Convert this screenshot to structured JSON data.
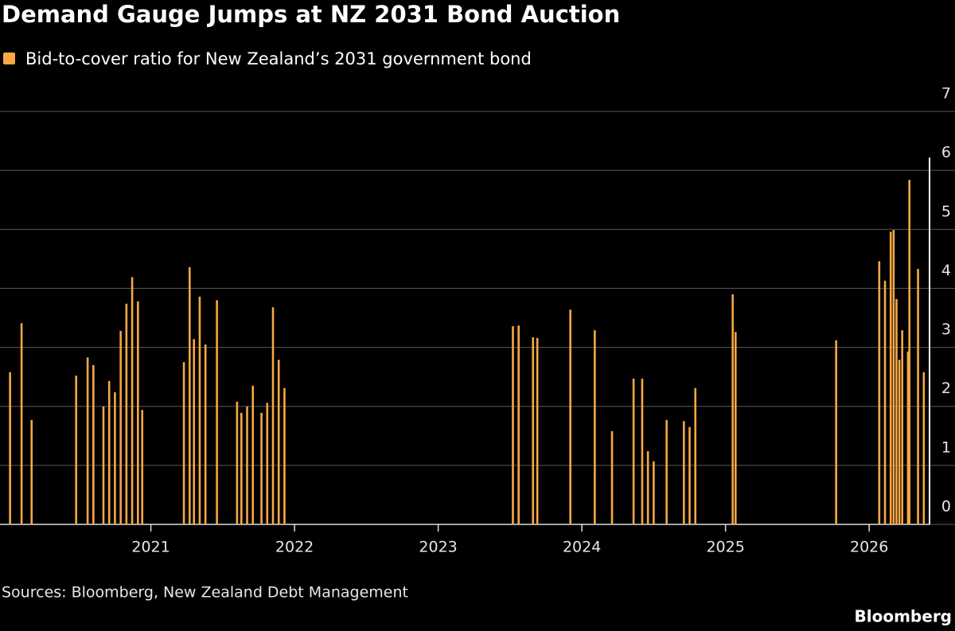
{
  "chart_data": {
    "type": "bar",
    "title": "Demand Gauge Jumps at NZ 2031 Bond Auction",
    "source": "Sources: Bloomberg, New Zealand Debt Management",
    "brand": "Bloomberg",
    "series": [
      {
        "name": "Bid-to-cover ratio for New Zealand’s 2031 government bond",
        "color": "#f7a843",
        "values": [
          2.58,
          3.41,
          1.77,
          2.52,
          2.83,
          2.7,
          2.0,
          2.43,
          2.24,
          3.28,
          3.74,
          4.19,
          3.78,
          1.94,
          2.75,
          4.36,
          3.14,
          3.86,
          3.05,
          3.8,
          2.08,
          1.89,
          2.0,
          2.35,
          1.89,
          2.06,
          3.68,
          2.79,
          2.31,
          3.36,
          3.37,
          3.17,
          3.16,
          3.64,
          3.29,
          1.58,
          2.47,
          2.47,
          1.24,
          1.07,
          1.77,
          1.75,
          1.65,
          2.31,
          3.9,
          3.26,
          3.12,
          4.46,
          4.13,
          4.96,
          4.99,
          3.82,
          2.79,
          3.29,
          2.93,
          5.84,
          4.33,
          2.58
        ]
      }
    ],
    "x": [
      2020.02,
      2020.1,
      2020.17,
      2020.48,
      2020.56,
      2020.6,
      2020.67,
      2020.71,
      2020.75,
      2020.79,
      2020.83,
      2020.87,
      2020.91,
      2020.94,
      2021.23,
      2021.27,
      2021.3,
      2021.34,
      2021.38,
      2021.46,
      2021.6,
      2021.63,
      2021.67,
      2021.71,
      2021.77,
      2021.81,
      2021.85,
      2021.89,
      2021.93,
      2023.52,
      2023.56,
      2023.66,
      2023.69,
      2023.92,
      2024.09,
      2024.21,
      2024.36,
      2024.42,
      2024.46,
      2024.5,
      2024.59,
      2024.71,
      2024.75,
      2024.79,
      2025.05,
      2025.07,
      2025.77,
      2026.07,
      2026.11,
      2026.15,
      2026.17,
      2026.19,
      2026.21,
      2026.23,
      2026.27,
      2026.28,
      2026.34,
      2026.38
    ],
    "xlim": [
      2019.95,
      2026.42
    ],
    "xticks": [
      2021,
      2022,
      2023,
      2024,
      2025,
      2026
    ],
    "ylim": [
      0,
      7
    ],
    "yticks": [
      0,
      1,
      2,
      3,
      4,
      5,
      6,
      7
    ],
    "grid": true
  }
}
